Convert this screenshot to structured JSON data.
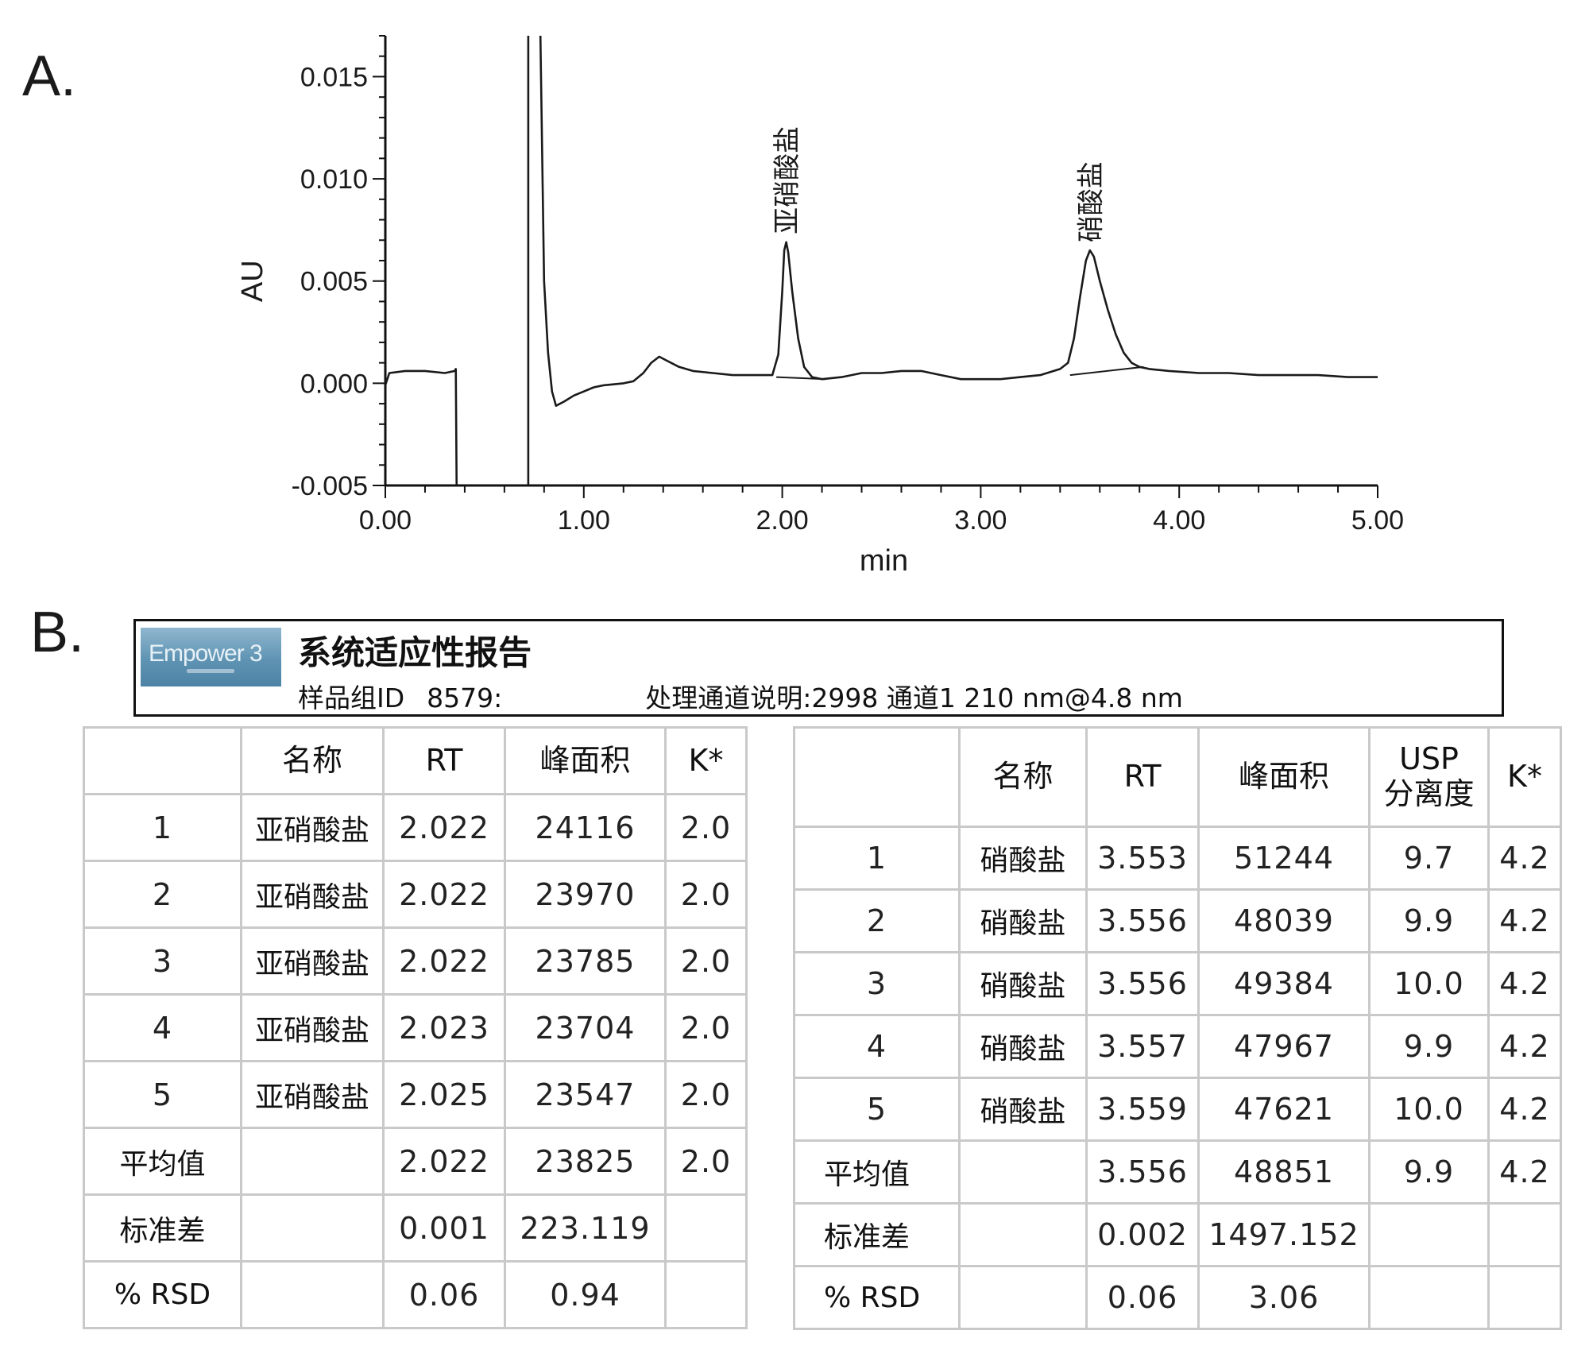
{
  "panel_labels": {
    "a": "A.",
    "b": "B."
  },
  "chart_data": {
    "type": "line",
    "title": "",
    "xlabel": "min",
    "ylabel": "AU",
    "xlim": [
      0,
      5
    ],
    "ylim": [
      -0.005,
      0.017
    ],
    "x_ticks": [
      0.0,
      1.0,
      2.0,
      3.0,
      4.0,
      5.0
    ],
    "x_tick_labels": [
      "0.00",
      "1.00",
      "2.00",
      "3.00",
      "4.00",
      "5.00"
    ],
    "y_ticks": [
      0.015,
      0.01,
      0.005,
      0.0,
      -0.005
    ],
    "y_tick_labels": [
      "0.015",
      "0.010",
      "0.005",
      "0.000",
      "-0.005"
    ],
    "grid": false,
    "series": [
      {
        "values_x": [
          0.0,
          0.02,
          0.1,
          0.2,
          0.3,
          0.35,
          0.355,
          0.36,
          0.72,
          0.72,
          0.75,
          0.78,
          0.8,
          0.82,
          0.84,
          0.86,
          0.9,
          0.95,
          1.0,
          1.05,
          1.1,
          1.2,
          1.25,
          1.3,
          1.34,
          1.38,
          1.42,
          1.48,
          1.55,
          1.65,
          1.75,
          1.85,
          1.95,
          1.98,
          2.0,
          2.01,
          2.02,
          2.03,
          2.05,
          2.08,
          2.11,
          2.15,
          2.2,
          2.3,
          2.4,
          2.5,
          2.6,
          2.7,
          2.8,
          2.9,
          3.0,
          3.1,
          3.2,
          3.3,
          3.4,
          3.44,
          3.47,
          3.5,
          3.53,
          3.55,
          3.57,
          3.6,
          3.64,
          3.68,
          3.72,
          3.76,
          3.8,
          3.85,
          3.95,
          4.1,
          4.25,
          4.4,
          4.55,
          4.7,
          4.85,
          5.0
        ],
        "values_y": [
          -0.0001,
          0.0005,
          0.0006,
          0.0006,
          0.0005,
          0.0006,
          0.0007,
          -0.006,
          -0.006,
          0.018,
          0.018,
          0.018,
          0.005,
          0.0015,
          -0.0004,
          -0.0011,
          -0.0009,
          -0.0006,
          -0.0004,
          -0.0002,
          -0.0001,
          0.0,
          0.0001,
          0.0005,
          0.001,
          0.0013,
          0.0011,
          0.0008,
          0.0006,
          0.0005,
          0.0004,
          0.0004,
          0.0004,
          0.0014,
          0.0045,
          0.0065,
          0.0069,
          0.0064,
          0.0045,
          0.0022,
          0.0008,
          0.0003,
          0.0002,
          0.0003,
          0.0005,
          0.0005,
          0.0006,
          0.0006,
          0.0004,
          0.0002,
          0.0002,
          0.0002,
          0.0003,
          0.0004,
          0.0007,
          0.001,
          0.0022,
          0.0042,
          0.006,
          0.0065,
          0.0062,
          0.005,
          0.0036,
          0.0024,
          0.0015,
          0.001,
          0.0008,
          0.0007,
          0.0006,
          0.0005,
          0.0005,
          0.0004,
          0.0004,
          0.0004,
          0.0003,
          0.0003
        ]
      }
    ],
    "peaks": [
      {
        "label": "亚硝酸盐",
        "rt": 2.022,
        "apex": 0.0069,
        "baseline_x": [
          1.97,
          2.22
        ],
        "baseline_y": [
          0.0003,
          0.0002
        ]
      },
      {
        "label": "硝酸盐",
        "rt": 3.553,
        "apex": 0.0065,
        "baseline_x": [
          3.45,
          3.82
        ],
        "baseline_y": [
          0.0004,
          0.0008
        ]
      }
    ]
  },
  "report": {
    "logo": "Empower 3",
    "title": "系统适应性报告",
    "sample_group_label": "样品组ID",
    "sample_group_value": "8579:",
    "channel_label": "处理通道说明:",
    "channel_value": "2998 通道1 210 nm@4.8 nm",
    "left_table": {
      "headers": [
        "",
        "名称",
        "RT",
        "峰面积",
        "K*"
      ],
      "rows": [
        [
          "1",
          "亚硝酸盐",
          "2.022",
          "24116",
          "2.0"
        ],
        [
          "2",
          "亚硝酸盐",
          "2.022",
          "23970",
          "2.0"
        ],
        [
          "3",
          "亚硝酸盐",
          "2.022",
          "23785",
          "2.0"
        ],
        [
          "4",
          "亚硝酸盐",
          "2.023",
          "23704",
          "2.0"
        ],
        [
          "5",
          "亚硝酸盐",
          "2.025",
          "23547",
          "2.0"
        ],
        [
          "平均值",
          "",
          "2.022",
          "23825",
          "2.0"
        ],
        [
          "标准差",
          "",
          "0.001",
          "223.119",
          ""
        ],
        [
          "% RSD",
          "",
          "0.06",
          "0.94",
          ""
        ]
      ]
    },
    "right_table": {
      "headers": [
        "",
        "名称",
        "RT",
        "峰面积",
        "USP\n分离度",
        "K*"
      ],
      "rows": [
        [
          "1",
          "硝酸盐",
          "3.553",
          "51244",
          "9.7",
          "4.2"
        ],
        [
          "2",
          "硝酸盐",
          "3.556",
          "48039",
          "9.9",
          "4.2"
        ],
        [
          "3",
          "硝酸盐",
          "3.556",
          "49384",
          "10.0",
          "4.2"
        ],
        [
          "4",
          "硝酸盐",
          "3.557",
          "47967",
          "9.9",
          "4.2"
        ],
        [
          "5",
          "硝酸盐",
          "3.559",
          "47621",
          "10.0",
          "4.2"
        ],
        [
          "平均值",
          "",
          "3.556",
          "48851",
          "9.9",
          "4.2"
        ],
        [
          "标准差",
          "",
          "0.002",
          "1497.152",
          "",
          ""
        ],
        [
          "% RSD",
          "",
          "0.06",
          "3.06",
          "",
          ""
        ]
      ]
    }
  }
}
